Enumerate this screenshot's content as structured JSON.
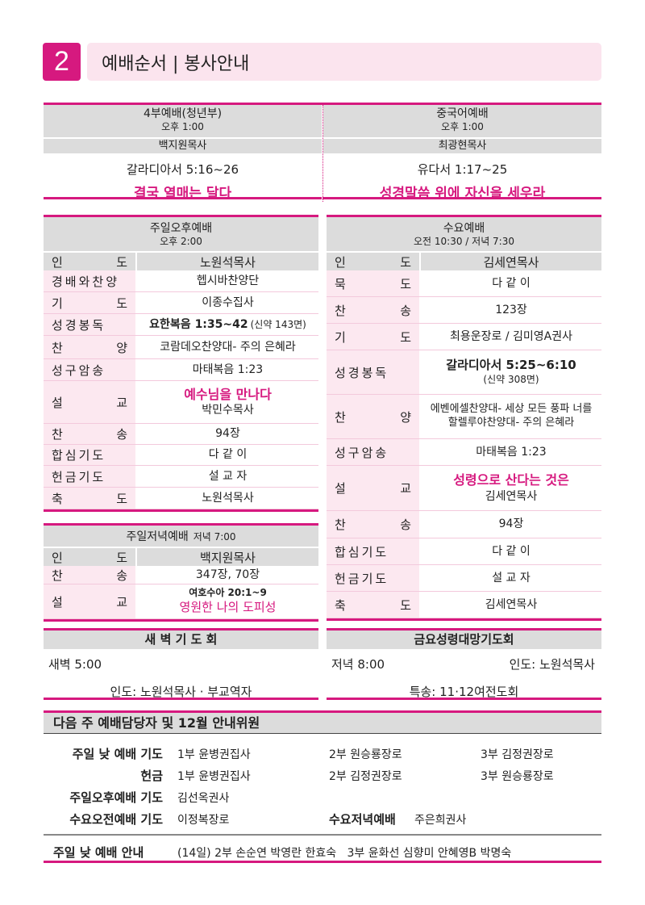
{
  "header": {
    "number": "2",
    "title": "예배순서 | 봉사안내"
  },
  "top": {
    "left": {
      "name": "4부예배(청년부)",
      "time": "오후 1:00",
      "pastor": "백지원목사",
      "scripture": "갈라디아서 5:16~26",
      "sermon": "결국 열매는 달다"
    },
    "right": {
      "name": "중국어예배",
      "time": "오후 1:00",
      "pastor": "최광현목사",
      "scripture": "유다서 1:17~25",
      "sermon": "성경말씀 위에 자신을 세우라"
    }
  },
  "sunday_pm": {
    "name": "주일오후예배",
    "time": "오후 2:00",
    "leader_label": "인도",
    "leader": "노원석목사",
    "rows": [
      {
        "label": "경배와찬양",
        "value": "헵시바찬양단"
      },
      {
        "label": "기도",
        "value": "이종수집사"
      },
      {
        "label": "성경봉독",
        "value": "요한복음 1:35~42",
        "note": "(신약 143면)"
      },
      {
        "label": "찬양",
        "value": "코람데오찬양대- 주의 은혜라"
      },
      {
        "label": "성구암송",
        "value": "마태복음 1:23"
      },
      {
        "label": "설교",
        "title": "예수님을 만나다",
        "value": "박민수목사"
      },
      {
        "label": "찬송",
        "value": "94장"
      },
      {
        "label": "합심기도",
        "value": "다 같 이"
      },
      {
        "label": "헌금기도",
        "value": "설 교 자"
      },
      {
        "label": "축도",
        "value": "노원석목사"
      }
    ]
  },
  "wednesday": {
    "name": "수요예배",
    "time": "오전 10:30 / 저녁 7:30",
    "leader_label": "인도",
    "leader": "김세연목사",
    "rows": [
      {
        "label": "묵도",
        "value": "다 같 이"
      },
      {
        "label": "찬송",
        "value": "123장"
      },
      {
        "label": "기도",
        "value": "최용운장로 / 김미영A권사"
      },
      {
        "label": "성경봉독",
        "value": "갈라디아서 5:25~6:10",
        "value2": "(신약 308면)"
      },
      {
        "label": "찬양",
        "value": "에벤에셀찬양대- 세상 모든 풍파 너를",
        "value2": "할렐루야찬양대- 주의 은혜라"
      },
      {
        "label": "성구암송",
        "value": "마태복음 1:23"
      },
      {
        "label": "설교",
        "title": "성령으로 산다는 것은",
        "value": "김세연목사"
      },
      {
        "label": "찬송",
        "value": "94장"
      },
      {
        "label": "합심기도",
        "value": "다 같 이"
      },
      {
        "label": "헌금기도",
        "value": "설 교 자"
      },
      {
        "label": "축도",
        "value": "김세연목사"
      }
    ]
  },
  "sunday_eve": {
    "name": "주일저녁예배",
    "time": "저녁 7:00",
    "leader_label": "인도",
    "leader": "백지원목사",
    "rows": [
      {
        "label": "찬송",
        "value": "347장, 70장"
      },
      {
        "label": "설교",
        "value": "여호수아 20:1~9",
        "title2": "영원한 나의 도피성"
      }
    ]
  },
  "dawn": {
    "name": "새 벽 기 도 회",
    "time": "새벽 5:00",
    "leader": "인도: 노원석목사 · 부교역자"
  },
  "friday": {
    "name": "금요성령대망기도회",
    "time": "저녁 8:00",
    "leader": "인도: 노원석목사",
    "special": "특송: 11·12여전도회"
  },
  "next": {
    "title": "다음 주 예배담당자 및 12월 안내위원",
    "rows": [
      {
        "label": "주일 낮 예배 기도",
        "c1": "1부 윤병권집사",
        "c2": "2부 원승룡장로",
        "c3": "3부 김정권장로"
      },
      {
        "label": "헌금",
        "c1": "1부 윤병권집사",
        "c2": "2부 김정권장로",
        "c3": "3부 원승룡장로"
      },
      {
        "label": "주일오후예배 기도",
        "c1": "김선옥권사"
      },
      {
        "label": "수요오전예배 기도",
        "c1": "이정복장로",
        "label2": "수요저녁예배",
        "c2": "주은희권사"
      }
    ],
    "guide_label": "주일 낮 예배 안내",
    "guide": "(14일) 2부 손순연 박영란 한효숙   3부 윤화선 심향미 안혜영B 박명숙"
  },
  "colors": {
    "accent": "#d6197f",
    "pink_bg": "#fbe4ee",
    "gray": "#dcdcdc"
  }
}
